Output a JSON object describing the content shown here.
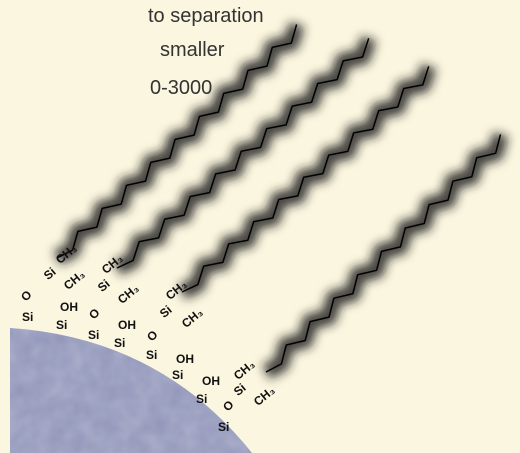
{
  "caption_lines": [
    "to separation",
    "smaller",
    "0-3000"
  ],
  "labels": [
    "CH₃",
    "Si",
    "CH₃",
    "O",
    "Si",
    "OH",
    "Si",
    "CH₃",
    "Si",
    "CH₃",
    "O",
    "Si",
    "OH",
    "Si",
    "CH₃",
    "Si",
    "CH₃",
    "O",
    "Si",
    "OH",
    "Si",
    "OH",
    "Si",
    "CH₃",
    "Si",
    "CH₃",
    "O",
    "Si"
  ]
}
